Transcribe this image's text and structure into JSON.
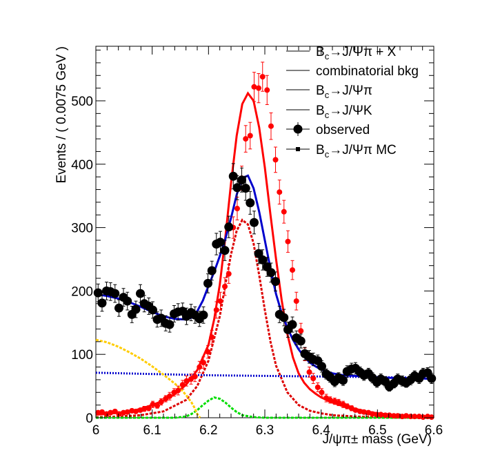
{
  "chart_data": {
    "type": "scatter",
    "xlabel": "J/ψπ± mass (GeV)",
    "ylabel": "Events / ( 0.0075 GeV )",
    "xlim": [
      6.0,
      6.6
    ],
    "ylim": [
      0,
      590
    ],
    "x_ticks": [
      "6",
      "6.1",
      "6.2",
      "6.3",
      "6.4",
      "6.5",
      "6.6"
    ],
    "y_ticks": [
      "0",
      "100",
      "200",
      "300",
      "400",
      "500"
    ],
    "grid": false,
    "legend_position": "top-right",
    "legend": [
      {
        "label": "Bc→J/Ψπ + X",
        "marker": "line",
        "color": "#000000"
      },
      {
        "label": "combinatorial bkg",
        "marker": "line",
        "color": "#000000"
      },
      {
        "label": "Bc→J/Ψπ",
        "marker": "line",
        "color": "#000000"
      },
      {
        "label": "Bc→J/ΨK",
        "marker": "line",
        "color": "#000000"
      },
      {
        "label": "observed",
        "marker": "circle",
        "color": "#000000"
      },
      {
        "label": "Bc→J/Ψπ MC",
        "marker": "square",
        "color": "#000000"
      }
    ],
    "observed_points": {
      "color": "#000000",
      "x": [
        6.004,
        6.011,
        6.019,
        6.026,
        6.034,
        6.041,
        6.049,
        6.056,
        6.064,
        6.071,
        6.079,
        6.086,
        6.094,
        6.101,
        6.109,
        6.116,
        6.124,
        6.131,
        6.139,
        6.146,
        6.154,
        6.161,
        6.169,
        6.176,
        6.184,
        6.191,
        6.199,
        6.206,
        6.214,
        6.221,
        6.229,
        6.236,
        6.244,
        6.251,
        6.259,
        6.266,
        6.274,
        6.281,
        6.289,
        6.296,
        6.304,
        6.311,
        6.319,
        6.326,
        6.334,
        6.341,
        6.349,
        6.356,
        6.364,
        6.371,
        6.379,
        6.386,
        6.394,
        6.401,
        6.409,
        6.416,
        6.424,
        6.431,
        6.439,
        6.446,
        6.454,
        6.461,
        6.469,
        6.476,
        6.484,
        6.491,
        6.499,
        6.506,
        6.514,
        6.521,
        6.529,
        6.536,
        6.544,
        6.551,
        6.559,
        6.566,
        6.574,
        6.581,
        6.589,
        6.596
      ],
      "y": [
        197,
        181,
        200,
        199,
        196,
        173,
        190,
        184,
        163,
        171,
        196,
        180,
        176,
        170,
        155,
        157,
        149,
        147,
        164,
        167,
        168,
        160,
        166,
        162,
        156,
        162,
        212,
        232,
        274,
        277,
        264,
        301,
        381,
        363,
        375,
        362,
        339,
        308,
        259,
        249,
        238,
        229,
        215,
        163,
        158,
        139,
        147,
        126,
        121,
        101,
        96,
        92,
        90,
        81,
        69,
        64,
        57,
        63,
        59,
        73,
        77,
        78,
        72,
        67,
        70,
        63,
        56,
        61,
        57,
        49,
        54,
        61,
        58,
        55,
        60,
        66,
        62,
        70,
        71,
        62
      ],
      "err": [
        14,
        13,
        14,
        14,
        14,
        13,
        14,
        14,
        13,
        13,
        14,
        13,
        13,
        13,
        12,
        13,
        12,
        12,
        13,
        13,
        13,
        13,
        13,
        13,
        12,
        13,
        15,
        15,
        17,
        17,
        16,
        17,
        20,
        19,
        19,
        19,
        18,
        18,
        16,
        16,
        15,
        15,
        15,
        13,
        13,
        12,
        12,
        11,
        11,
        10,
        10,
        10,
        9,
        9,
        8,
        8,
        8,
        8,
        8,
        9,
        9,
        9,
        8,
        8,
        8,
        8,
        8,
        8,
        8,
        7,
        7,
        8,
        8,
        7,
        8,
        8,
        8,
        8,
        8,
        8
      ]
    },
    "mc_points": {
      "color": "#ff0000",
      "x": [
        6.004,
        6.011,
        6.019,
        6.026,
        6.034,
        6.041,
        6.049,
        6.056,
        6.064,
        6.071,
        6.079,
        6.086,
        6.094,
        6.101,
        6.109,
        6.116,
        6.124,
        6.131,
        6.139,
        6.146,
        6.154,
        6.161,
        6.169,
        6.176,
        6.184,
        6.191,
        6.199,
        6.206,
        6.214,
        6.221,
        6.229,
        6.236,
        6.244,
        6.251,
        6.259,
        6.266,
        6.274,
        6.281,
        6.289,
        6.296,
        6.304,
        6.311,
        6.319,
        6.326,
        6.334,
        6.341,
        6.349,
        6.356,
        6.364,
        6.371,
        6.379,
        6.386,
        6.394,
        6.401,
        6.409,
        6.416,
        6.424,
        6.431,
        6.439,
        6.446,
        6.454,
        6.461,
        6.469,
        6.476,
        6.484,
        6.491,
        6.499,
        6.506,
        6.514,
        6.521,
        6.529,
        6.536,
        6.544,
        6.551,
        6.559,
        6.566,
        6.574,
        6.581,
        6.589,
        6.596
      ],
      "y": [
        8,
        9,
        6,
        8,
        10,
        6,
        8,
        9,
        11,
        10,
        12,
        14,
        15,
        21,
        19,
        25,
        30,
        34,
        40,
        43,
        52,
        58,
        61,
        65,
        80,
        87,
        104,
        127,
        170,
        184,
        207,
        227,
        300,
        330,
        378,
        440,
        445,
        522,
        520,
        538,
        517,
        460,
        407,
        356,
        325,
        278,
        233,
        184,
        137,
        100,
        72,
        62,
        48,
        40,
        31,
        28,
        26,
        24,
        21,
        18,
        15,
        12,
        10,
        9,
        8,
        6,
        5,
        5,
        4,
        4,
        3,
        3,
        2,
        3,
        2,
        2,
        2,
        1,
        2,
        1
      ],
      "err": [
        3,
        3,
        2,
        3,
        3,
        2,
        3,
        3,
        3,
        3,
        3,
        4,
        4,
        5,
        4,
        5,
        5,
        6,
        6,
        7,
        7,
        8,
        8,
        8,
        9,
        9,
        10,
        11,
        13,
        14,
        14,
        15,
        17,
        18,
        19,
        21,
        21,
        23,
        23,
        23,
        23,
        21,
        20,
        19,
        18,
        17,
        15,
        14,
        12,
        10,
        8,
        8,
        7,
        6,
        6,
        5,
        5,
        5,
        5,
        4,
        4,
        3,
        3,
        3,
        3,
        2,
        2,
        2,
        2,
        2,
        2,
        2,
        1,
        2,
        1,
        1,
        1,
        1,
        1,
        1
      ]
    },
    "series": [
      {
        "role": "mc-fit",
        "style": "solid",
        "color": "#ff0000",
        "x": [
          6.0,
          6.02,
          6.04,
          6.06,
          6.08,
          6.1,
          6.12,
          6.14,
          6.16,
          6.18,
          6.2,
          6.21,
          6.22,
          6.23,
          6.24,
          6.25,
          6.26,
          6.27,
          6.28,
          6.29,
          6.3,
          6.31,
          6.32,
          6.33,
          6.34,
          6.35,
          6.36,
          6.37,
          6.38,
          6.39,
          6.4,
          6.42,
          6.44,
          6.46,
          6.48,
          6.5,
          6.52,
          6.54,
          6.56,
          6.58,
          6.6
        ],
        "y": [
          5,
          6,
          8,
          10,
          14,
          20,
          27,
          37,
          52,
          75,
          115,
          155,
          210,
          285,
          370,
          445,
          495,
          512,
          500,
          458,
          395,
          320,
          250,
          185,
          132,
          95,
          70,
          55,
          45,
          38,
          32,
          24,
          18,
          14,
          10,
          7,
          5,
          4,
          3,
          2,
          2
        ]
      },
      {
        "role": "total-fit",
        "style": "solid",
        "color": "#0000cc",
        "x": [
          6.0,
          6.02,
          6.04,
          6.06,
          6.08,
          6.1,
          6.12,
          6.14,
          6.16,
          6.17,
          6.18,
          6.19,
          6.2,
          6.21,
          6.22,
          6.23,
          6.24,
          6.25,
          6.26,
          6.27,
          6.28,
          6.29,
          6.3,
          6.31,
          6.32,
          6.33,
          6.34,
          6.35,
          6.36,
          6.37,
          6.38,
          6.39,
          6.4,
          6.42,
          6.44,
          6.46,
          6.48,
          6.5,
          6.52,
          6.54,
          6.56,
          6.58,
          6.6
        ],
        "y": [
          195,
          192,
          188,
          182,
          175,
          167,
          160,
          156,
          155,
          158,
          168,
          185,
          208,
          230,
          255,
          282,
          315,
          352,
          378,
          382,
          362,
          325,
          280,
          235,
          195,
          165,
          142,
          123,
          108,
          96,
          87,
          81,
          76,
          70,
          67,
          66,
          65,
          64,
          63,
          63,
          62,
          62,
          61
        ]
      },
      {
        "role": "signal",
        "style": "dashed",
        "color": "#dd0000",
        "x": [
          6.0,
          6.04,
          6.08,
          6.12,
          6.16,
          6.18,
          6.2,
          6.22,
          6.23,
          6.24,
          6.25,
          6.26,
          6.27,
          6.28,
          6.29,
          6.3,
          6.31,
          6.32,
          6.34,
          6.36,
          6.38,
          6.4,
          6.42,
          6.46,
          6.5,
          6.55,
          6.6
        ],
        "y": [
          1,
          2,
          4,
          10,
          28,
          50,
          90,
          160,
          210,
          258,
          295,
          312,
          305,
          275,
          225,
          170,
          120,
          82,
          40,
          20,
          11,
          7,
          4,
          2,
          1,
          0,
          0
        ]
      },
      {
        "role": "combinatorial-bkg",
        "style": "dotted",
        "color": "#0000cc",
        "x": [
          6.0,
          6.1,
          6.2,
          6.3,
          6.4,
          6.5,
          6.6
        ],
        "y": [
          71,
          69,
          67,
          66,
          65,
          64,
          63
        ]
      },
      {
        "role": "bc-to-jpsi-k",
        "style": "dashed",
        "color": "#00dd00",
        "x": [
          6.0,
          6.14,
          6.16,
          6.17,
          6.18,
          6.19,
          6.2,
          6.21,
          6.22,
          6.23,
          6.24,
          6.25,
          6.26,
          6.28,
          6.3,
          6.6
        ],
        "y": [
          0,
          0,
          2,
          6,
          12,
          20,
          27,
          32,
          30,
          24,
          16,
          9,
          4,
          1,
          0,
          0
        ]
      },
      {
        "role": "partial-reco",
        "style": "dashed",
        "color": "#ffcc00",
        "x": [
          6.0,
          6.02,
          6.04,
          6.06,
          6.08,
          6.1,
          6.12,
          6.14,
          6.15,
          6.16,
          6.17,
          6.175,
          6.18,
          6.185
        ],
        "y": [
          123,
          119,
          112,
          103,
          93,
          81,
          68,
          54,
          46,
          36,
          24,
          16,
          6,
          0
        ]
      }
    ]
  }
}
